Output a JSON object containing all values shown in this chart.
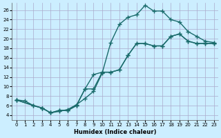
{
  "xlabel": "Humidex (Indice chaleur)",
  "ylabel": "",
  "bg_color": "#cceeff",
  "line_color": "#1a6b6b",
  "grid_color": "#aaaacc",
  "xlim": [
    -0.5,
    23.5
  ],
  "ylim": [
    3,
    27.5
  ],
  "xticks": [
    0,
    1,
    2,
    3,
    4,
    5,
    6,
    7,
    8,
    9,
    10,
    11,
    12,
    13,
    14,
    15,
    16,
    17,
    18,
    19,
    20,
    21,
    22,
    23
  ],
  "yticks": [
    4,
    6,
    8,
    10,
    12,
    14,
    16,
    18,
    20,
    22,
    24,
    26
  ],
  "line1_x": [
    0,
    1,
    2,
    3,
    4,
    5,
    6,
    7,
    8,
    9,
    10,
    11,
    12,
    13,
    14,
    15,
    16,
    17,
    18,
    19,
    20,
    21,
    22,
    23
  ],
  "line1_y": [
    7.2,
    7.0,
    6.0,
    5.5,
    4.5,
    5.0,
    5.0,
    6.0,
    9.5,
    12.5,
    13.0,
    13.0,
    13.5,
    16.5,
    19.0,
    19.0,
    18.5,
    18.5,
    20.5,
    21.0,
    19.5,
    19.0,
    19.0,
    19.0
  ],
  "line2_x": [
    0,
    2,
    3,
    4,
    5,
    6,
    7,
    8,
    9,
    10,
    11,
    12,
    13,
    14,
    15,
    16,
    17,
    18,
    19,
    20,
    21,
    22,
    23
  ],
  "line2_y": [
    7.2,
    6.0,
    5.5,
    4.5,
    5.0,
    5.0,
    6.0,
    9.5,
    9.5,
    13.0,
    13.0,
    13.5,
    16.5,
    19.0,
    19.0,
    18.5,
    18.5,
    20.5,
    21.0,
    19.5,
    19.0,
    19.0,
    19.0
  ],
  "line3_x": [
    0,
    3,
    4,
    5,
    6,
    7,
    8,
    9,
    10,
    11,
    12,
    13,
    14,
    15,
    16,
    17,
    18,
    19,
    20,
    21,
    22,
    23
  ],
  "line3_y": [
    7.2,
    5.5,
    4.5,
    4.8,
    5.2,
    6.2,
    7.5,
    9.0,
    12.8,
    19.2,
    23.0,
    24.5,
    25.0,
    27.0,
    25.8,
    25.8,
    24.0,
    23.5,
    21.5,
    20.5,
    19.5,
    19.2
  ]
}
